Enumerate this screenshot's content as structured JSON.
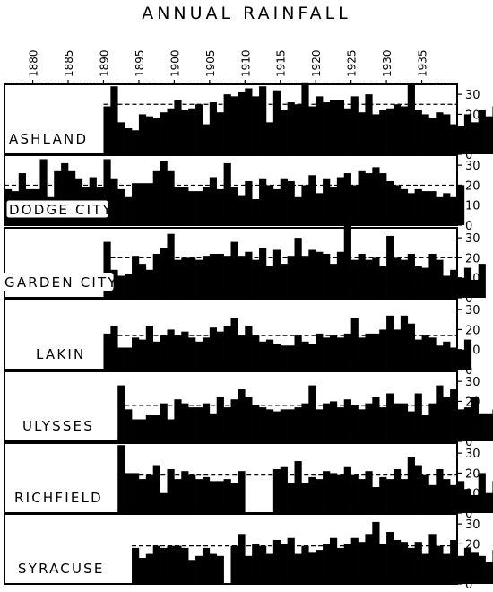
{
  "chart_data": {
    "type": "bar",
    "title": "ANNUAL RAINFALL",
    "x_start_year": 1876,
    "x_end_year": 1939,
    "x_tick_labels": [
      "1880",
      "1885",
      "1890",
      "1895",
      "1900",
      "1905",
      "1910",
      "1915",
      "1920",
      "1925",
      "1930",
      "1935"
    ],
    "y_tick_labels": [
      "0",
      "10",
      "20",
      "30"
    ],
    "ylim": [
      0,
      35
    ],
    "series": [
      {
        "name": "ASHLAND",
        "start_year": 1890,
        "values": [
          24,
          34,
          16,
          13,
          12,
          20,
          19,
          18,
          21,
          23,
          27,
          22,
          23,
          25,
          15,
          26,
          21,
          30,
          29,
          31,
          33,
          29,
          34,
          16,
          32,
          22,
          26,
          25,
          36,
          24,
          29,
          26,
          27,
          27,
          23,
          29,
          21,
          30,
          20,
          22,
          23,
          25,
          24,
          35,
          22,
          20,
          18,
          21,
          20,
          15,
          14,
          20,
          16,
          22,
          19,
          24
        ],
        "mean": 25
      },
      {
        "name": "DODGE CITY",
        "start_year": 1876,
        "values": [
          18,
          17,
          26,
          18,
          18,
          33,
          14,
          27,
          31,
          27,
          23,
          19,
          24,
          19,
          33,
          23,
          18,
          14,
          21,
          21,
          21,
          27,
          32,
          27,
          19,
          19,
          17,
          17,
          19,
          24,
          18,
          31,
          19,
          15,
          22,
          13,
          23,
          20,
          18,
          23,
          22,
          14,
          20,
          25,
          16,
          23,
          19,
          24,
          26,
          20,
          27,
          26,
          29,
          26,
          22,
          20,
          18,
          16,
          18,
          17,
          17,
          14,
          16,
          14,
          20
        ],
        "mean": 20
      },
      {
        "name": "GARDEN CITY",
        "start_year": 1890,
        "values": [
          28,
          14,
          11,
          12,
          21,
          17,
          14,
          22,
          25,
          32,
          19,
          20,
          20,
          19,
          21,
          22,
          22,
          21,
          28,
          21,
          23,
          19,
          25,
          16,
          24,
          17,
          21,
          30,
          21,
          24,
          23,
          22,
          17,
          23,
          36,
          19,
          22,
          19,
          20,
          16,
          31,
          20,
          19,
          22,
          16,
          15,
          22,
          19,
          11,
          14,
          10,
          15,
          9,
          17
        ],
        "mean": 20
      },
      {
        "name": "LAKIN",
        "start_year": 1890,
        "values": [
          18,
          22,
          11,
          11,
          16,
          15,
          22,
          14,
          17,
          20,
          17,
          19,
          16,
          14,
          16,
          21,
          19,
          22,
          26,
          17,
          22,
          17,
          14,
          15,
          13,
          12,
          12,
          17,
          14,
          13,
          18,
          16,
          17,
          16,
          18,
          26,
          16,
          18,
          18,
          20,
          27,
          20,
          27,
          23,
          15,
          17,
          16,
          12,
          14,
          11,
          10,
          15
        ],
        "mean": 17
      },
      {
        "name": "ULYSSES",
        "start_year": 1892,
        "values": [
          28,
          16,
          11,
          11,
          13,
          13,
          19,
          11,
          21,
          19,
          17,
          17,
          19,
          14,
          22,
          17,
          21,
          26,
          22,
          18,
          17,
          16,
          15,
          16,
          16,
          17,
          19,
          28,
          16,
          19,
          20,
          17,
          21,
          18,
          16,
          19,
          22,
          17,
          24,
          19,
          19,
          15,
          24,
          13,
          19,
          28,
          22,
          26,
          16,
          17,
          22,
          14,
          14,
          16,
          20
        ],
        "mean": 18
      },
      {
        "name": "RICHFIELD",
        "start_year": 1892,
        "values": [
          34,
          20,
          20,
          17,
          19,
          24,
          10,
          22,
          17,
          21,
          19,
          17,
          18,
          16,
          16,
          17,
          15,
          21,
          null,
          null,
          null,
          null,
          22,
          23,
          15,
          26,
          15,
          18,
          17,
          21,
          20,
          19,
          23,
          19,
          17,
          21,
          13,
          18,
          17,
          22,
          17,
          28,
          24,
          19,
          14,
          22,
          17,
          14,
          16,
          12,
          9,
          20,
          10,
          16
        ],
        "mean": 19
      },
      {
        "name": "SYRACUSE",
        "start_year": 1894,
        "values": [
          18,
          13,
          15,
          19,
          18,
          19,
          19,
          18,
          12,
          14,
          18,
          15,
          14,
          null,
          19,
          25,
          14,
          20,
          19,
          15,
          22,
          20,
          23,
          15,
          19,
          16,
          17,
          20,
          23,
          18,
          20,
          23,
          21,
          25,
          31,
          20,
          26,
          22,
          21,
          18,
          21,
          15,
          25,
          19,
          15,
          22,
          14,
          18,
          16,
          14,
          11,
          17
        ],
        "mean": 19
      }
    ]
  }
}
